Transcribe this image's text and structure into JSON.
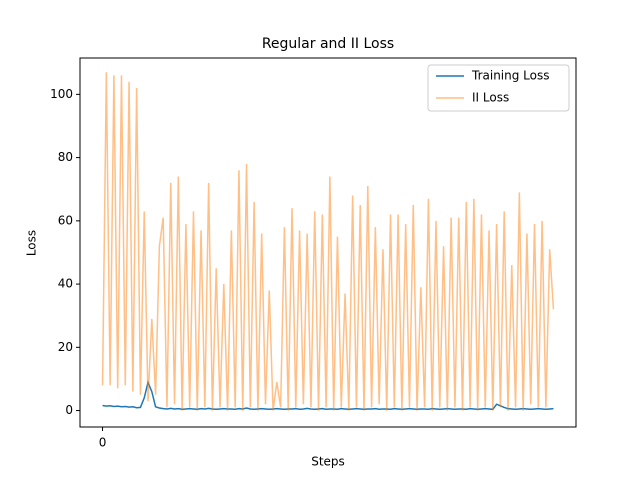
{
  "chart_data": {
    "type": "line",
    "title": "Regular and II Loss",
    "xlabel": "Steps",
    "ylabel": "Loss",
    "x": [
      0,
      1,
      2,
      3,
      4,
      5,
      6,
      7,
      8,
      9,
      10,
      11,
      12,
      13,
      14,
      15,
      16,
      17,
      18,
      19,
      20,
      21,
      22,
      23,
      24,
      25,
      26,
      27,
      28,
      29,
      30,
      31,
      32,
      33,
      34,
      35,
      36,
      37,
      38,
      39,
      40,
      41,
      42,
      43,
      44,
      45,
      46,
      47,
      48,
      49,
      50,
      51,
      52,
      53,
      54,
      55,
      56,
      57,
      58,
      59,
      60,
      61,
      62,
      63,
      64,
      65,
      66,
      67,
      68,
      69,
      70,
      71,
      72,
      73,
      74,
      75,
      76,
      77,
      78,
      79,
      80,
      81,
      82,
      83,
      84,
      85,
      86,
      87,
      88,
      89,
      90,
      91,
      92,
      93,
      94,
      95,
      96,
      97,
      98,
      99,
      100,
      101,
      102,
      103,
      104,
      105,
      106,
      107,
      108,
      109,
      110,
      111,
      112,
      113,
      114,
      115,
      116,
      117,
      118,
      119
    ],
    "series": [
      {
        "name": "Training Loss",
        "color": "#1f77b4",
        "opacity": 1,
        "values": [
          1.6,
          1.4,
          1.5,
          1.3,
          1.4,
          1.2,
          1.3,
          1.1,
          1.2,
          0.9,
          1.0,
          4,
          8.9,
          6,
          1.2,
          0.8,
          0.6,
          0.5,
          0.7,
          0.5,
          0.6,
          0.4,
          0.5,
          0.6,
          0.5,
          0.4,
          0.6,
          0.5,
          0.7,
          0.5,
          0.4,
          0.5,
          0.6,
          0.5,
          0.5,
          0.4,
          0.6,
          0.5,
          0.8,
          0.5,
          0.4,
          0.5,
          0.6,
          0.5,
          0.4,
          0.5,
          0.6,
          0.5,
          0.4,
          0.5,
          0.5,
          0.6,
          0.4,
          0.5,
          0.7,
          0.5,
          0.4,
          0.5,
          0.6,
          0.4,
          0.5,
          0.5,
          0.4,
          0.6,
          0.5,
          0.4,
          0.5,
          0.6,
          0.5,
          0.4,
          0.5,
          0.5,
          0.6,
          0.4,
          0.5,
          0.5,
          0.4,
          0.6,
          0.5,
          0.4,
          0.5,
          0.6,
          0.5,
          0.4,
          0.5,
          0.5,
          0.4,
          0.6,
          0.5,
          0.4,
          0.5,
          0.6,
          0.5,
          0.4,
          0.5,
          0.5,
          0.4,
          0.6,
          0.5,
          0.4,
          0.5,
          0.6,
          0.5,
          0.4,
          2,
          1.5,
          1,
          0.6,
          0.5,
          0.4,
          0.5,
          0.6,
          0.5,
          0.4,
          0.5,
          0.6,
          0.5,
          0.4,
          0.5,
          0.6
        ]
      },
      {
        "name": "II Loss",
        "color": "#ff7f0e",
        "opacity": 0.5,
        "values": [
          8,
          107,
          8,
          106,
          7,
          106,
          8,
          104,
          6,
          102,
          5,
          63,
          3,
          29,
          5,
          52,
          61,
          1,
          72,
          2,
          74,
          0,
          59,
          1,
          63,
          0,
          57,
          1,
          72,
          0,
          45,
          1,
          40,
          0,
          57,
          1,
          76,
          0,
          78,
          1,
          66,
          0,
          56,
          2,
          38,
          0,
          9,
          1,
          58,
          0,
          64,
          1,
          57,
          2,
          56,
          1,
          63,
          0,
          62,
          1,
          74,
          0,
          55,
          1,
          37,
          0,
          68,
          1,
          65,
          0,
          71,
          1,
          58,
          2,
          51,
          0,
          62,
          1,
          62,
          0,
          59,
          1,
          65,
          0,
          39,
          1,
          67,
          0,
          60,
          1,
          52,
          0,
          61,
          1,
          61,
          0,
          66,
          1,
          67,
          0,
          62,
          1,
          57,
          0,
          59,
          1,
          63,
          0,
          46,
          1,
          69,
          0,
          56,
          2,
          59,
          1,
          60,
          1,
          51,
          32
        ]
      }
    ],
    "xlim": [
      -5.95,
      124.95
    ],
    "xticks": [
      0
    ],
    "ylim": [
      -5.2,
      111.5
    ],
    "yticks": [
      0,
      20,
      40,
      60,
      80,
      100
    ],
    "legend": "upper right"
  }
}
